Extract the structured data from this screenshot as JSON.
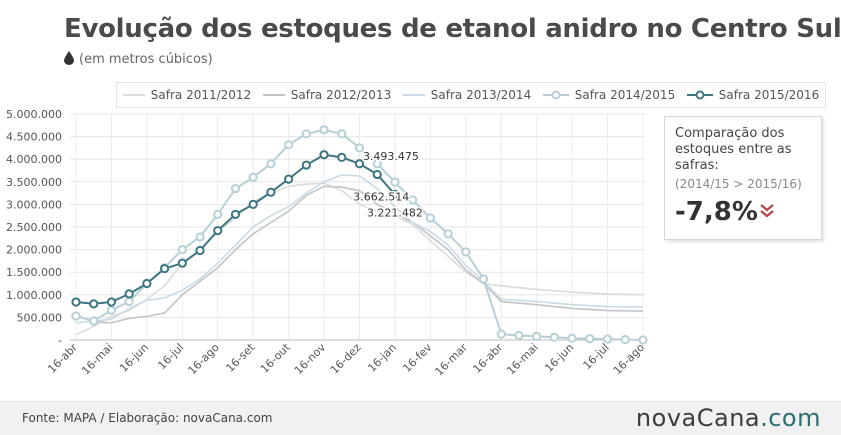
{
  "header": {
    "title": "Evolução dos estoques de etanol anidro no Centro Sul",
    "subtitle": "(em metros cúbicos)"
  },
  "infobox": {
    "title": "Comparação dos estoques entre as safras:",
    "subtitle": "(2014/15 > 2015/16)",
    "value": "-7,8%"
  },
  "footer": {
    "source": "Fonte: MAPA / Elaboração:  novaCana.com",
    "logo_main": "novaCana",
    "logo_accent": ".com"
  },
  "colors": {
    "safra_2011_2012": "#dcdcdc",
    "safra_2012_2013": "#c3c3c3",
    "safra_2013_2014": "#c9dbe6",
    "safra_2014_2015": "#b8d0d5",
    "safra_2015_2016": "#3d7680",
    "down_arrow": "#b34a4a"
  },
  "chart_data": {
    "type": "line",
    "x": [
      "16-abr",
      "16-mai",
      "16-jun",
      "16-jul",
      "16-ago",
      "16-set",
      "16-out",
      "16-nov",
      "16-dez",
      "16-jan",
      "16-fev",
      "16-mar",
      "16-abr",
      "16-mai",
      "16-jun",
      "16-jul",
      "16-ago"
    ],
    "ylim": [
      0,
      5000000
    ],
    "yticks": [
      "-",
      "500.000",
      "1.000.000",
      "1.500.000",
      "2.000.000",
      "2.500.000",
      "3.000.000",
      "3.500.000",
      "4.000.000",
      "4.500.000",
      "5.000.000"
    ],
    "grid": true,
    "legend_position": "top",
    "series": [
      {
        "name": "Safra 2011/2012",
        "color": "#dcdcdc",
        "markers": false,
        "x": [
          0,
          0.5,
          1,
          1.5,
          2,
          2.5,
          3,
          3.5,
          4,
          4.5,
          5,
          5.5,
          6,
          6.5,
          7,
          7.5,
          8,
          8.5,
          9,
          9.5,
          10,
          10.5,
          11,
          11.5,
          12,
          13,
          14,
          15,
          16
        ],
        "y": [
          120000,
          300000,
          520000,
          650000,
          900000,
          1200000,
          1700000,
          2000000,
          2400000,
          2700000,
          3050000,
          3250000,
          3400000,
          3450000,
          3470000,
          3300000,
          3000000,
          2850000,
          2750000,
          2550000,
          2200000,
          1850000,
          1500000,
          1250000,
          1200000,
          1120000,
          1060000,
          1020000,
          1000000
        ]
      },
      {
        "name": "Safra 2012/2013",
        "color": "#c3c3c3",
        "markers": false,
        "x": [
          0,
          0.5,
          1,
          1.5,
          2,
          2.5,
          3,
          3.5,
          4,
          4.5,
          5,
          5.5,
          6,
          6.5,
          7,
          7.5,
          8,
          8.5,
          9,
          9.5,
          10,
          10.5,
          11,
          11.5,
          12,
          13,
          14,
          15,
          16
        ],
        "y": [
          550000,
          400000,
          380000,
          480000,
          520000,
          600000,
          1000000,
          1300000,
          1600000,
          2000000,
          2350000,
          2600000,
          2850000,
          3200000,
          3400000,
          3380000,
          3300000,
          3000000,
          2800000,
          2600000,
          2300000,
          2000000,
          1550000,
          1250000,
          850000,
          780000,
          700000,
          650000,
          640000
        ]
      },
      {
        "name": "Safra 2013/2014",
        "color": "#c9dbe6",
        "markers": false,
        "x": [
          0,
          0.5,
          1,
          1.5,
          2,
          2.5,
          3,
          3.5,
          4,
          4.5,
          5,
          5.5,
          6,
          6.5,
          7,
          7.5,
          8,
          8.5,
          9,
          9.5,
          10,
          10.5,
          11,
          11.5,
          12,
          13,
          14,
          15,
          16
        ],
        "y": [
          380000,
          420000,
          460000,
          700000,
          880000,
          930000,
          1100000,
          1350000,
          1700000,
          2100000,
          2500000,
          2750000,
          2950000,
          3250000,
          3500000,
          3650000,
          3630000,
          3350000,
          2950000,
          2600000,
          2400000,
          2100000,
          1650000,
          1300000,
          900000,
          850000,
          780000,
          740000,
          730000
        ]
      },
      {
        "name": "Safra 2014/2015",
        "color": "#b8d0d5",
        "markers": true,
        "x": [
          0,
          0.5,
          1,
          1.5,
          2,
          2.5,
          3,
          3.5,
          4,
          4.5,
          5,
          5.5,
          6,
          6.5,
          7,
          7.5,
          8,
          8.5,
          9,
          9.5,
          10,
          10.5,
          11,
          11.5,
          12,
          12.5,
          13,
          13.5,
          14,
          14.5,
          15,
          15.5,
          16
        ],
        "y": [
          530000,
          420000,
          660000,
          850000,
          1250000,
          1600000,
          2000000,
          2280000,
          2780000,
          3350000,
          3600000,
          3900000,
          4320000,
          4560000,
          4650000,
          4560000,
          4250000,
          3900000,
          3493475,
          3100000,
          2700000,
          2350000,
          1950000,
          1350000,
          130000,
          100000,
          80000,
          60000,
          40000,
          30000,
          20000,
          10000,
          0
        ]
      },
      {
        "name": "Safra 2015/2016",
        "color": "#3d7680",
        "markers": true,
        "x": [
          0,
          0.5,
          1,
          1.5,
          2,
          2.5,
          3,
          3.5,
          4,
          4.5,
          5,
          5.5,
          6,
          6.5,
          7,
          7.5,
          8,
          8.5,
          9
        ],
        "y": [
          840000,
          800000,
          840000,
          1020000,
          1250000,
          1580000,
          1700000,
          1980000,
          2420000,
          2780000,
          3000000,
          3270000,
          3560000,
          3870000,
          4100000,
          4040000,
          3900000,
          3662514,
          3221482
        ]
      }
    ],
    "annotations": [
      {
        "text": "3.493.475",
        "x": 9,
        "y": 3493475,
        "anchor": "above"
      },
      {
        "text": "3.662.514",
        "x": 8.5,
        "y": 3662514,
        "anchor": "below"
      },
      {
        "text": "3.221.482",
        "x": 9,
        "y": 3221482,
        "anchor": "below"
      }
    ]
  }
}
